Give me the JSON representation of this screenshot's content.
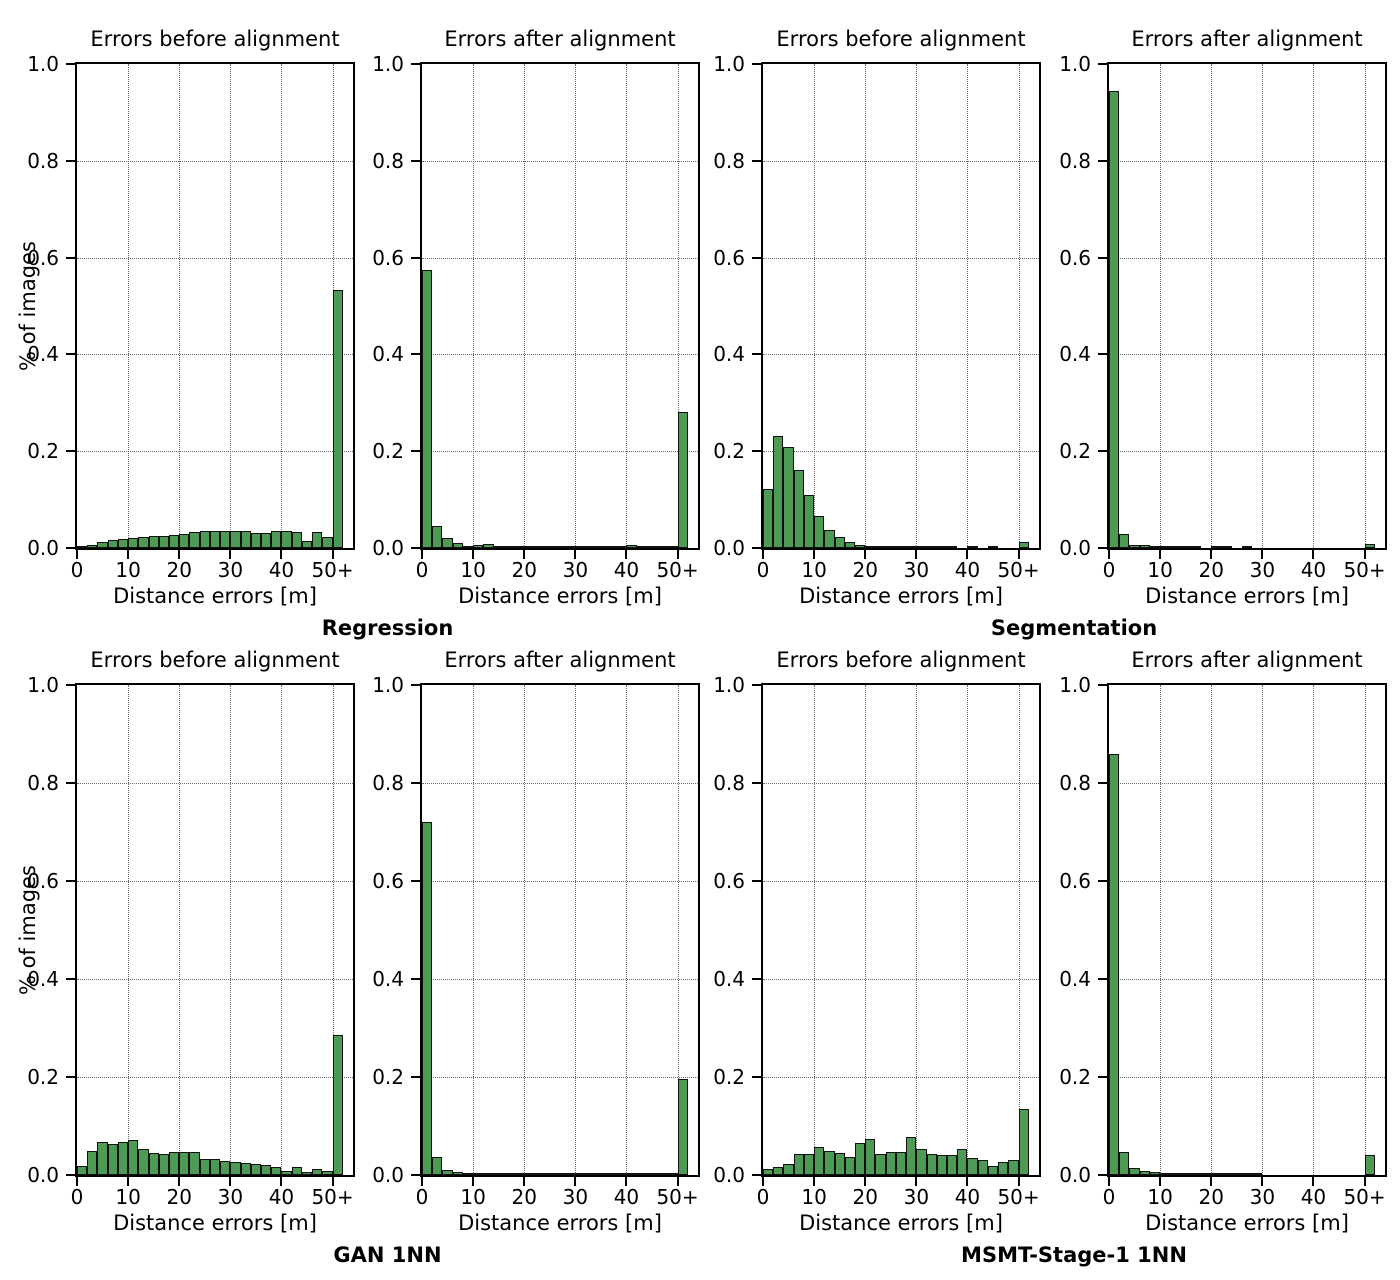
{
  "figure": {
    "background_color": "#ffffff",
    "bar_fill_color": "#4c9a53",
    "bar_edge_color": "#111111",
    "grid_color": "#6b6b6b",
    "frame_color": "#000000",
    "y_axis_label": "% of images",
    "x_axis_label": "Distance errors [m]",
    "xlim": [
      0,
      54
    ],
    "ylim": [
      0,
      1
    ],
    "grid": "dotted",
    "xticks": {
      "values": [
        0,
        10,
        20,
        30,
        40,
        50
      ],
      "labels": [
        "0",
        "10",
        "20",
        "30",
        "40",
        "50+"
      ]
    },
    "yticks": {
      "values": [
        0,
        0.2,
        0.4,
        0.6,
        0.8,
        1.0
      ],
      "labels": [
        "0.0",
        "0.2",
        "0.4",
        "0.6",
        "0.8",
        "1.0"
      ]
    }
  },
  "groups": [
    {
      "label": "Regression"
    },
    {
      "label": "Segmentation"
    },
    {
      "label": "GAN 1NN"
    },
    {
      "label": "MSMT-Stage-1 1NN"
    }
  ],
  "chart_data": [
    {
      "type": "bar",
      "title": "Errors before alignment",
      "group": "Regression",
      "row": 0,
      "col": 0,
      "xlabel": "Distance errors [m]",
      "ylabel": "% of images",
      "bin_width_m": 2,
      "last_bin_label": "50+",
      "xlim": [
        0,
        54
      ],
      "ylim": [
        0,
        1
      ],
      "values": [
        0.004,
        0.007,
        0.013,
        0.017,
        0.018,
        0.021,
        0.022,
        0.025,
        0.024,
        0.027,
        0.028,
        0.033,
        0.035,
        0.036,
        0.036,
        0.036,
        0.035,
        0.03,
        0.031,
        0.035,
        0.035,
        0.033,
        0.015,
        0.033,
        0.022,
        0.533
      ]
    },
    {
      "type": "bar",
      "title": "Errors after alignment",
      "group": "Regression",
      "row": 0,
      "col": 1,
      "xlabel": "Distance errors [m]",
      "ylabel": "% of images",
      "bin_width_m": 2,
      "last_bin_label": "50+",
      "xlim": [
        0,
        54
      ],
      "ylim": [
        0,
        1
      ],
      "values": [
        0.575,
        0.046,
        0.02,
        0.01,
        0.004,
        0.006,
        0.008,
        0.004,
        0.002,
        0.002,
        0.002,
        0.003,
        0.003,
        0.003,
        0.002,
        0.002,
        0.002,
        0.002,
        0.002,
        0.002,
        0.007,
        0.003,
        0.002,
        0.003,
        0.002,
        0.28
      ]
    },
    {
      "type": "bar",
      "title": "Errors before alignment",
      "group": "Segmentation",
      "row": 0,
      "col": 2,
      "xlabel": "Distance errors [m]",
      "ylabel": "% of images",
      "bin_width_m": 2,
      "last_bin_label": "50+",
      "xlim": [
        0,
        54
      ],
      "ylim": [
        0,
        1
      ],
      "values": [
        0.121,
        0.232,
        0.208,
        0.162,
        0.109,
        0.066,
        0.037,
        0.023,
        0.013,
        0.007,
        0.005,
        0.003,
        0.002,
        0.002,
        0.001,
        0.001,
        0.001,
        0.001,
        0.001,
        0.0,
        0.001,
        0.0,
        0.001,
        0.0,
        0.0,
        0.012
      ]
    },
    {
      "type": "bar",
      "title": "Errors after alignment",
      "group": "Segmentation",
      "row": 0,
      "col": 3,
      "xlabel": "Distance errors [m]",
      "ylabel": "% of images",
      "bin_width_m": 2,
      "last_bin_label": "50+",
      "xlim": [
        0,
        54
      ],
      "ylim": [
        0,
        1
      ],
      "values": [
        0.945,
        0.028,
        0.007,
        0.007,
        0.002,
        0.001,
        0.001,
        0.001,
        0.001,
        0.0,
        0.001,
        0.003,
        0.0,
        0.001,
        0.0,
        0.0,
        0.0,
        0.0,
        0.0,
        0.0,
        0.0,
        0.0,
        0.0,
        0.0,
        0.0,
        0.008
      ]
    },
    {
      "type": "bar",
      "title": "Errors before alignment",
      "group": "GAN 1NN",
      "row": 1,
      "col": 0,
      "xlabel": "Distance errors [m]",
      "ylabel": "% of images",
      "bin_width_m": 2,
      "last_bin_label": "50+",
      "xlim": [
        0,
        54
      ],
      "ylim": [
        0,
        1
      ],
      "values": [
        0.018,
        0.049,
        0.067,
        0.063,
        0.067,
        0.071,
        0.054,
        0.045,
        0.042,
        0.047,
        0.047,
        0.047,
        0.032,
        0.032,
        0.028,
        0.026,
        0.024,
        0.022,
        0.02,
        0.017,
        0.009,
        0.016,
        0.007,
        0.012,
        0.008,
        0.285
      ]
    },
    {
      "type": "bar",
      "title": "Errors after alignment",
      "group": "GAN 1NN",
      "row": 1,
      "col": 1,
      "xlabel": "Distance errors [m]",
      "ylabel": "% of images",
      "bin_width_m": 2,
      "last_bin_label": "50+",
      "xlim": [
        0,
        54
      ],
      "ylim": [
        0,
        1
      ],
      "values": [
        0.72,
        0.036,
        0.01,
        0.007,
        0.003,
        0.002,
        0.002,
        0.002,
        0.003,
        0.002,
        0.002,
        0.001,
        0.001,
        0.001,
        0.001,
        0.001,
        0.001,
        0.001,
        0.001,
        0.001,
        0.001,
        0.002,
        0.004,
        0.001,
        0.001,
        0.195
      ]
    },
    {
      "type": "bar",
      "title": "Errors before alignment",
      "group": "MSMT-Stage-1 1NN",
      "row": 1,
      "col": 2,
      "xlabel": "Distance errors [m]",
      "ylabel": "% of images",
      "bin_width_m": 2,
      "last_bin_label": "50+",
      "xlim": [
        0,
        54
      ],
      "ylim": [
        0,
        1
      ],
      "values": [
        0.012,
        0.017,
        0.022,
        0.042,
        0.043,
        0.057,
        0.048,
        0.045,
        0.036,
        0.065,
        0.073,
        0.042,
        0.047,
        0.046,
        0.078,
        0.053,
        0.042,
        0.041,
        0.041,
        0.053,
        0.034,
        0.03,
        0.019,
        0.026,
        0.03,
        0.135
      ]
    },
    {
      "type": "bar",
      "title": "Errors after alignment",
      "group": "MSMT-Stage-1 1NN",
      "row": 1,
      "col": 3,
      "xlabel": "Distance errors [m]",
      "ylabel": "% of images",
      "bin_width_m": 2,
      "last_bin_label": "50+",
      "xlim": [
        0,
        54
      ],
      "ylim": [
        0,
        1
      ],
      "values": [
        0.86,
        0.047,
        0.015,
        0.008,
        0.007,
        0.005,
        0.002,
        0.001,
        0.001,
        0.001,
        0.001,
        0.001,
        0.001,
        0.001,
        0.001,
        0.0,
        0.0,
        0.0,
        0.0,
        0.0,
        0.0,
        0.0,
        0.0,
        0.0,
        0.0,
        0.04
      ]
    }
  ]
}
